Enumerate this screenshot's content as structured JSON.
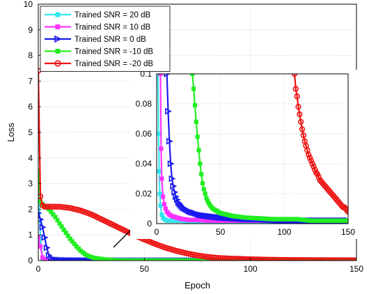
{
  "chart_data": [
    {
      "type": "line",
      "role": "main",
      "xlabel": "Epoch",
      "ylabel": "Loss",
      "xlim": [
        0,
        150
      ],
      "ylim": [
        0,
        10
      ],
      "xticks": [
        0,
        50,
        100,
        150
      ],
      "yticks": [
        0,
        1,
        2,
        3,
        4,
        5,
        6,
        7,
        8,
        9,
        10
      ],
      "grid": true,
      "legend": "top-left",
      "series": [
        {
          "name": "Trained SNR = 20 dB",
          "color": "#33e6f0",
          "marker": "square",
          "x": [
            0,
            1,
            2,
            3,
            4,
            5,
            6,
            8,
            10,
            15,
            20,
            30,
            40,
            60,
            80,
            100,
            120,
            150
          ],
          "y": [
            3.4,
            0.9,
            0.08,
            0.02,
            0.01,
            0.005,
            0.004,
            0.003,
            0.003,
            0.003,
            0.003,
            0.002,
            0.002,
            0.002,
            0.002,
            0.002,
            0.002,
            0.002
          ]
        },
        {
          "name": "Trained SNR = 10 dB",
          "color": "#ff33ff",
          "marker": "square",
          "x": [
            0,
            1,
            2,
            3,
            4,
            5,
            6,
            8,
            10,
            15,
            20,
            30,
            40,
            60,
            80,
            100,
            120,
            150
          ],
          "y": [
            0.9,
            0.55,
            0.12,
            0.04,
            0.02,
            0.01,
            0.008,
            0.006,
            0.005,
            0.004,
            0.003,
            0.003,
            0.003,
            0.003,
            0.003,
            0.003,
            0.003,
            0.003
          ]
        },
        {
          "name": "Trained SNR = 0 dB",
          "color": "#1a1aee",
          "marker": "triangle",
          "x": [
            0,
            1,
            2,
            3,
            4,
            5,
            6,
            7,
            8,
            9,
            10,
            12,
            14,
            16,
            18,
            20,
            25,
            30,
            40,
            60,
            80,
            100,
            120,
            150
          ],
          "y": [
            1.85,
            1.6,
            1.3,
            0.9,
            0.5,
            0.2,
            0.1,
            0.05,
            0.035,
            0.028,
            0.022,
            0.016,
            0.012,
            0.01,
            0.008,
            0.007,
            0.005,
            0.004,
            0.003,
            0.003,
            0.003,
            0.003,
            0.003,
            0.003
          ]
        },
        {
          "name": "Trained SNR = -10 dB",
          "color": "#22ee22",
          "marker": "square",
          "x": [
            0,
            1,
            2,
            5,
            8,
            10,
            12,
            15,
            18,
            20,
            22,
            24,
            26,
            28,
            30,
            32,
            34,
            36,
            40,
            45,
            50,
            60,
            80,
            100,
            120,
            150
          ],
          "y": [
            3.5,
            2.3,
            2.2,
            2.0,
            1.7,
            1.45,
            1.2,
            0.85,
            0.55,
            0.38,
            0.25,
            0.16,
            0.11,
            0.085,
            0.06,
            0.04,
            0.025,
            0.015,
            0.008,
            0.006,
            0.005,
            0.004,
            0.003,
            0.002,
            0.002,
            0.002
          ]
        },
        {
          "name": "Trained SNR = -20 dB",
          "color": "#ee1111",
          "marker": "circle",
          "x": [
            0,
            1,
            2,
            3,
            5,
            10,
            15,
            20,
            25,
            30,
            35,
            40,
            45,
            50,
            55,
            60,
            65,
            70,
            75,
            80,
            85,
            90,
            95,
            100,
            105,
            110,
            115,
            120,
            125,
            130,
            135,
            140,
            145,
            150
          ],
          "y": [
            7.4,
            2.5,
            2.15,
            2.1,
            2.1,
            2.1,
            2.05,
            1.95,
            1.8,
            1.6,
            1.4,
            1.2,
            1.0,
            0.82,
            0.65,
            0.5,
            0.38,
            0.28,
            0.2,
            0.14,
            0.1,
            0.08,
            0.065,
            0.05,
            0.04,
            0.032,
            0.026,
            0.022,
            0.018,
            0.015,
            0.013,
            0.011,
            0.009,
            0.008
          ]
        }
      ]
    },
    {
      "type": "line",
      "role": "inset",
      "xlim": [
        0,
        150
      ],
      "ylim": [
        0,
        0.1
      ],
      "xticks": [
        0,
        50,
        100,
        150
      ],
      "yticks": [
        0,
        0.02,
        0.04,
        0.06,
        0.08,
        0.1
      ],
      "ytick_labels": [
        "0",
        "0.02",
        "0.04",
        "0.06",
        "0.08",
        "0.1"
      ],
      "grid": true,
      "series": [
        {
          "name": "Trained SNR = 20 dB",
          "color": "#33e6f0",
          "marker": "square",
          "x": [
            1,
            1.5,
            2,
            2.5,
            3,
            4,
            5,
            6,
            8,
            10,
            15,
            20,
            30,
            50,
            80,
            110,
            150
          ],
          "y": [
            0.1,
            0.06,
            0.035,
            0.02,
            0.012,
            0.006,
            0.004,
            0.003,
            0.002,
            0.002,
            0.002,
            0.002,
            0.001,
            0.001,
            0.001,
            0.001,
            0.001
          ]
        },
        {
          "name": "Trained SNR = 10 dB",
          "color": "#ff33ff",
          "marker": "square",
          "x": [
            3,
            3.5,
            4,
            5,
            6,
            7,
            8,
            9,
            10,
            11,
            12,
            14,
            16,
            18,
            20,
            22,
            25,
            30,
            40,
            60,
            100,
            150
          ],
          "y": [
            0.1,
            0.05,
            0.03,
            0.018,
            0.013,
            0.01,
            0.008,
            0.007,
            0.006,
            0.0055,
            0.005,
            0.0045,
            0.004,
            0.0035,
            0.003,
            0.003,
            0.0025,
            0.0025,
            0.002,
            0.002,
            0.002,
            0.002
          ]
        },
        {
          "name": "Trained SNR = 0 dB",
          "color": "#1a1aee",
          "marker": "triangle",
          "x": [
            8,
            9,
            10,
            11,
            12,
            13,
            14,
            15,
            16,
            17,
            18,
            19,
            20,
            21,
            22,
            24,
            26,
            28,
            30,
            33,
            36,
            40,
            45,
            50,
            60,
            70,
            80,
            100,
            120,
            150
          ],
          "y": [
            0.1,
            0.075,
            0.055,
            0.04,
            0.03,
            0.025,
            0.021,
            0.018,
            0.016,
            0.014,
            0.013,
            0.012,
            0.011,
            0.0105,
            0.01,
            0.009,
            0.008,
            0.0075,
            0.007,
            0.006,
            0.0055,
            0.005,
            0.0045,
            0.004,
            0.0035,
            0.003,
            0.003,
            0.002,
            0.002,
            0.002
          ]
        },
        {
          "name": "Trained SNR = -10 dB",
          "color": "#22ee22",
          "marker": "square",
          "x": [
            28,
            29,
            30,
            31,
            32,
            33,
            34,
            35,
            36,
            37,
            38,
            39,
            40,
            42,
            44,
            46,
            48,
            50,
            55,
            60,
            65,
            70,
            80,
            90,
            100,
            110,
            120,
            130,
            140,
            150
          ],
          "y": [
            0.1,
            0.09,
            0.079,
            0.068,
            0.058,
            0.049,
            0.04,
            0.033,
            0.027,
            0.023,
            0.02,
            0.017,
            0.015,
            0.012,
            0.01,
            0.009,
            0.008,
            0.007,
            0.006,
            0.005,
            0.0045,
            0.004,
            0.0035,
            0.003,
            0.003,
            0.003,
            0.002,
            0.002,
            0.002,
            0.002
          ]
        },
        {
          "name": "Trained SNR = -20 dB",
          "color": "#ee1111",
          "marker": "circle",
          "x": [
            108,
            109,
            110,
            111,
            112,
            113,
            114,
            115,
            116,
            117,
            118,
            119,
            120,
            121,
            122,
            123,
            124,
            125,
            126,
            127,
            128,
            129,
            130,
            131,
            132,
            133,
            134,
            135,
            136,
            137,
            138,
            139,
            140,
            141,
            142,
            143,
            144,
            145,
            146,
            147,
            148,
            149,
            150
          ],
          "y": [
            0.1,
            0.09,
            0.085,
            0.078,
            0.073,
            0.068,
            0.063,
            0.059,
            0.055,
            0.052,
            0.049,
            0.046,
            0.044,
            0.042,
            0.04,
            0.038,
            0.036,
            0.034,
            0.033,
            0.031,
            0.029,
            0.028,
            0.027,
            0.026,
            0.025,
            0.024,
            0.023,
            0.022,
            0.021,
            0.02,
            0.019,
            0.018,
            0.017,
            0.016,
            0.015,
            0.014,
            0.013,
            0.012,
            0.011,
            0.011,
            0.01,
            0.009,
            0.008
          ]
        }
      ]
    }
  ]
}
